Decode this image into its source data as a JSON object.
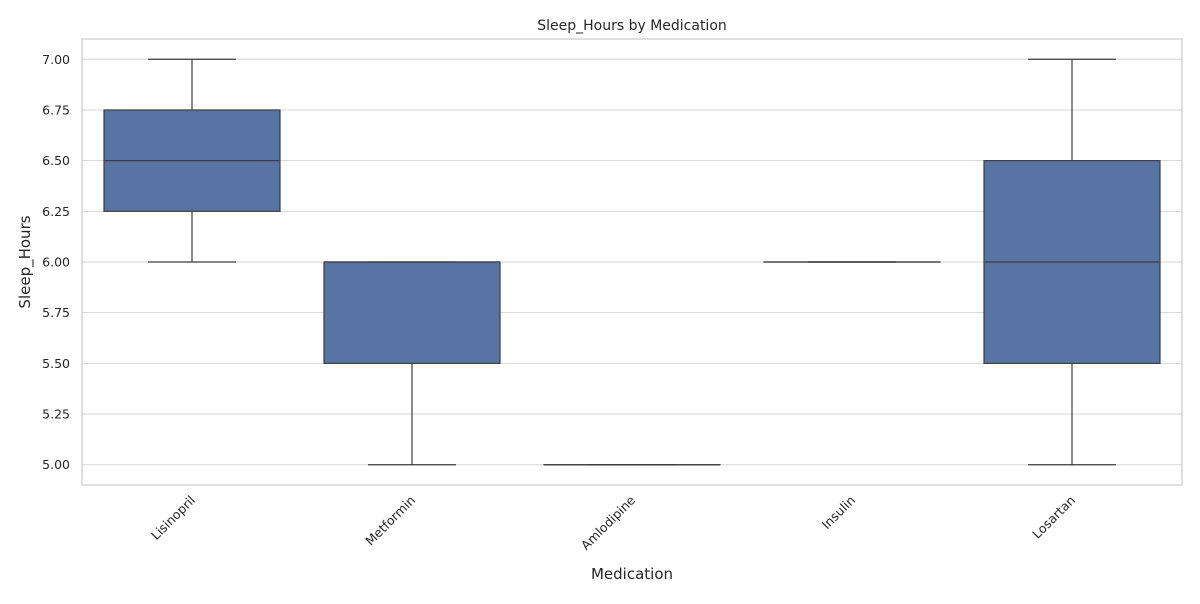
{
  "chart_data": {
    "type": "box",
    "title": "Sleep_Hours by Medication",
    "xlabel": "Medication",
    "ylabel": "Sleep_Hours",
    "ylim": [
      4.9,
      7.1
    ],
    "yticks": [
      5.0,
      5.25,
      5.5,
      5.75,
      6.0,
      6.25,
      6.5,
      6.75,
      7.0
    ],
    "ytick_labels": [
      "5.00",
      "5.25",
      "5.50",
      "5.75",
      "6.00",
      "6.25",
      "6.50",
      "6.75",
      "7.00"
    ],
    "grid": true,
    "box_color": "#5874a5",
    "line_color": "#3d3d3d",
    "grid_color": "#d5d5d5",
    "categories": [
      "Lisinopril",
      "Metformin",
      "Amlodipine",
      "Insulin",
      "Losartan"
    ],
    "boxes": [
      {
        "category": "Lisinopril",
        "whisker_low": 6.0,
        "q1": 6.25,
        "median": 6.5,
        "q3": 6.75,
        "whisker_high": 7.0
      },
      {
        "category": "Metformin",
        "whisker_low": 5.0,
        "q1": 5.5,
        "median": 6.0,
        "q3": 6.0,
        "whisker_high": 6.0
      },
      {
        "category": "Amlodipine",
        "whisker_low": 5.0,
        "q1": 5.0,
        "median": 5.0,
        "q3": 5.0,
        "whisker_high": 5.0
      },
      {
        "category": "Insulin",
        "whisker_low": 6.0,
        "q1": 6.0,
        "median": 6.0,
        "q3": 6.0,
        "whisker_high": 6.0
      },
      {
        "category": "Losartan",
        "whisker_low": 5.0,
        "q1": 5.5,
        "median": 6.0,
        "q3": 6.5,
        "whisker_high": 7.0
      }
    ]
  }
}
